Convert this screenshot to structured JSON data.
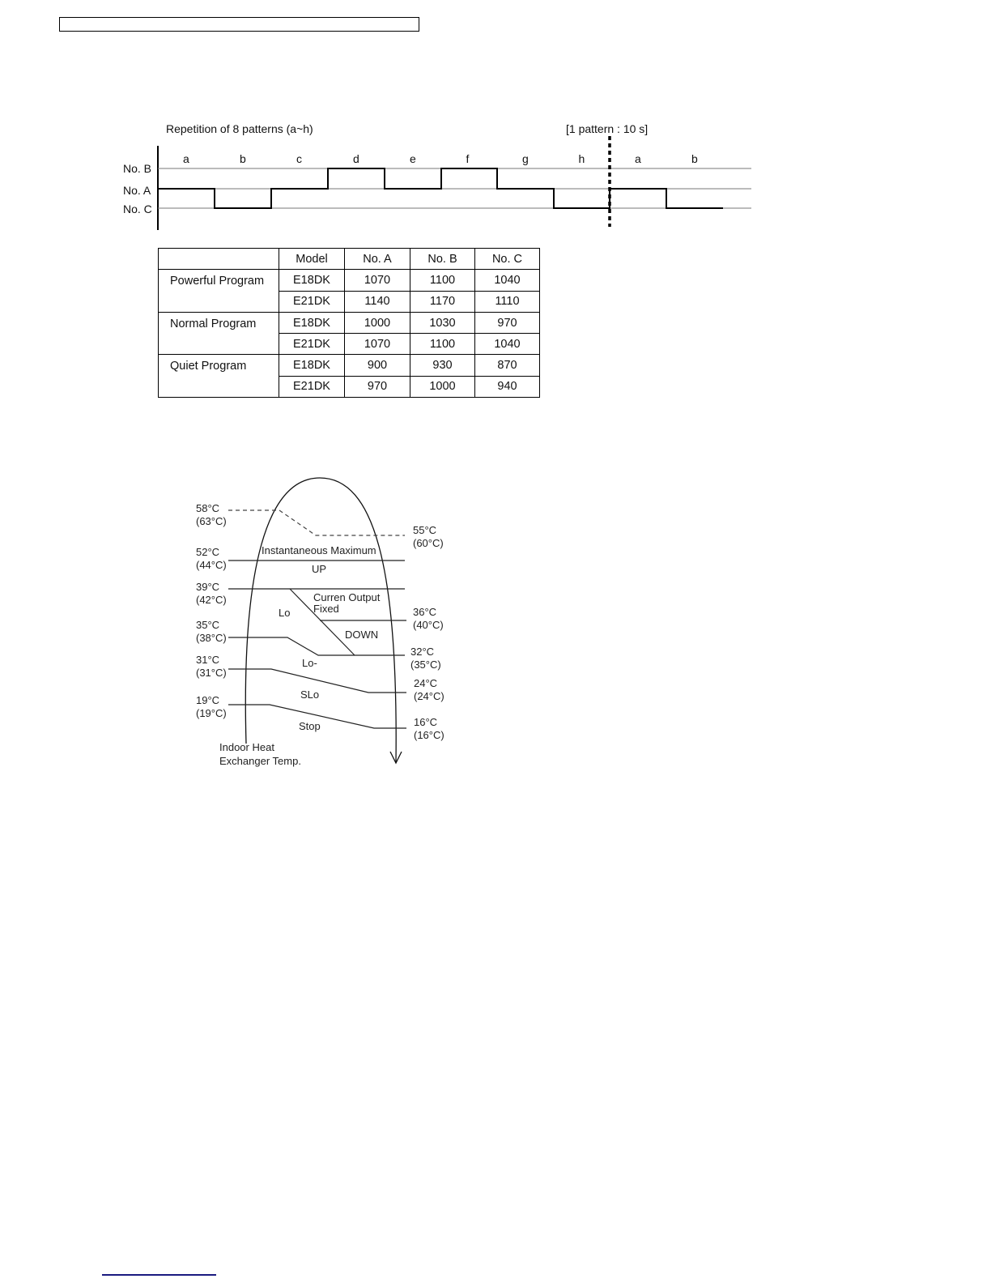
{
  "pattern_diagram": {
    "title": "Repetition of 8 patterns (a~h)",
    "note": "[1 pattern : 10 s]",
    "levels": [
      "No. B",
      "No. A",
      "No. C"
    ],
    "segments": [
      {
        "label": "a",
        "level": "No. A"
      },
      {
        "label": "b",
        "level": "No. C"
      },
      {
        "label": "c",
        "level": "No. A"
      },
      {
        "label": "d",
        "level": "No. B"
      },
      {
        "label": "e",
        "level": "No. A"
      },
      {
        "label": "f",
        "level": "No. B"
      },
      {
        "label": "g",
        "level": "No. A"
      },
      {
        "label": "h",
        "level": "No. C"
      },
      {
        "label": "a",
        "level": "No. A"
      },
      {
        "label": "b",
        "level": "No. C"
      }
    ]
  },
  "table": {
    "headers": [
      "",
      "Model",
      "No. A",
      "No. B",
      "No. C"
    ],
    "groups": [
      {
        "program": "Powerful Program",
        "rows": [
          [
            "E18DK",
            "1070",
            "1100",
            "1040"
          ],
          [
            "E21DK",
            "1140",
            "1170",
            "1110"
          ]
        ]
      },
      {
        "program": "Normal Program",
        "rows": [
          [
            "E18DK",
            "1000",
            "1030",
            "970"
          ],
          [
            "E21DK",
            "1070",
            "1100",
            "1040"
          ]
        ]
      },
      {
        "program": "Quiet Program",
        "rows": [
          [
            "E18DK",
            "900",
            "930",
            "870"
          ],
          [
            "E21DK",
            "970",
            "1000",
            "940"
          ]
        ]
      }
    ]
  },
  "temp_diagram": {
    "left_labels": [
      [
        "58°C",
        "(63°C)"
      ],
      [
        "52°C",
        "(44°C)"
      ],
      [
        "39°C",
        "(42°C)"
      ],
      [
        "35°C",
        "(38°C)"
      ],
      [
        "31°C",
        "(31°C)"
      ],
      [
        "19°C",
        "(19°C)"
      ]
    ],
    "right_labels": [
      [
        "55°C",
        "(60°C)"
      ],
      [
        "36°C",
        "(40°C)"
      ],
      [
        "32°C",
        "(35°C)"
      ],
      [
        "24°C",
        "(24°C)"
      ],
      [
        "16°C",
        "(16°C)"
      ]
    ],
    "zones": {
      "inst_max": "Instantaneous Maximum",
      "up": "UP",
      "fixed_1": "Curren Output",
      "fixed_2": "Fixed",
      "lo": "Lo",
      "down": "DOWN",
      "lo_minus": "Lo-",
      "slo": "SLo",
      "stop": "Stop"
    },
    "axis_label_1": "Indoor Heat",
    "axis_label_2": "Exchanger Temp."
  }
}
